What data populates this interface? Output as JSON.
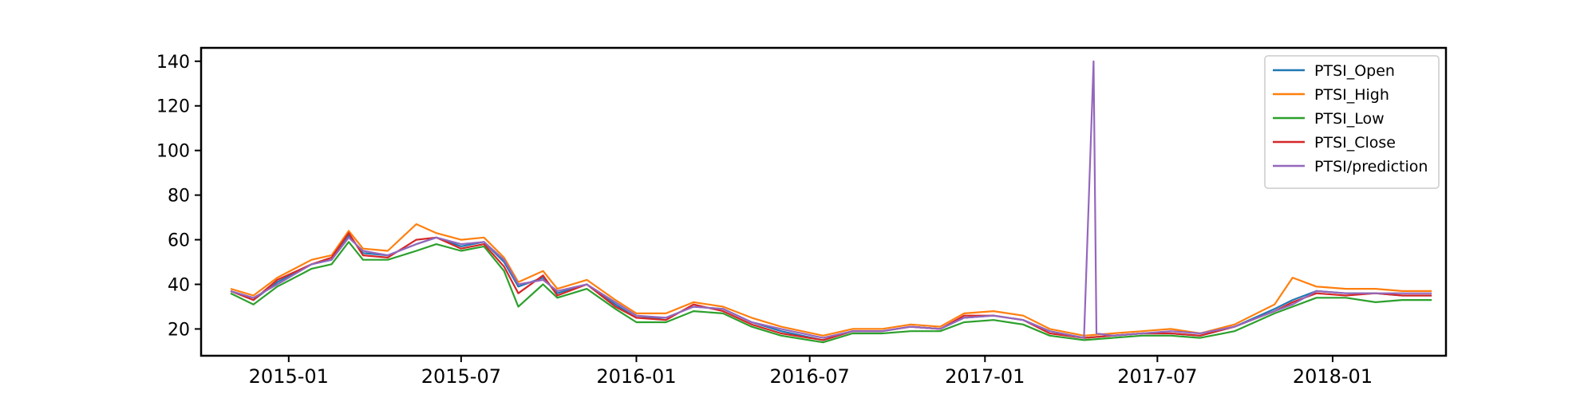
{
  "chart_data": {
    "type": "line",
    "title": "",
    "xlabel": "",
    "ylabel": "",
    "xlim": [
      "2014-10-01",
      "2018-04-30"
    ],
    "ylim": [
      8,
      146
    ],
    "grid": false,
    "legend_position": "top-right",
    "x_ticks": [
      "2015-01",
      "2015-07",
      "2016-01",
      "2016-07",
      "2017-01",
      "2017-07",
      "2018-01"
    ],
    "y_ticks": [
      20,
      40,
      60,
      80,
      100,
      120,
      140
    ],
    "series": [
      {
        "name": "PTSI_Open",
        "color": "#1f77b4",
        "points": [
          [
            "2014-11-01",
            37
          ],
          [
            "2014-11-25",
            33
          ],
          [
            "2014-12-20",
            41
          ],
          [
            "2015-01-25",
            49
          ],
          [
            "2015-02-15",
            51
          ],
          [
            "2015-03-05",
            62
          ],
          [
            "2015-03-20",
            54
          ],
          [
            "2015-04-15",
            53
          ],
          [
            "2015-05-15",
            58
          ],
          [
            "2015-06-05",
            61
          ],
          [
            "2015-07-01",
            57
          ],
          [
            "2015-07-25",
            59
          ],
          [
            "2015-08-15",
            50
          ],
          [
            "2015-08-30",
            39
          ],
          [
            "2015-09-25",
            43
          ],
          [
            "2015-10-10",
            36
          ],
          [
            "2015-11-10",
            40
          ],
          [
            "2015-12-10",
            31
          ],
          [
            "2016-01-01",
            25
          ],
          [
            "2016-02-01",
            25
          ],
          [
            "2016-03-01",
            30
          ],
          [
            "2016-04-01",
            29
          ],
          [
            "2016-05-01",
            23
          ],
          [
            "2016-06-01",
            19
          ],
          [
            "2016-07-15",
            15
          ],
          [
            "2016-08-15",
            19
          ],
          [
            "2016-09-15",
            19
          ],
          [
            "2016-10-15",
            21
          ],
          [
            "2016-11-15",
            20
          ],
          [
            "2016-12-10",
            25
          ],
          [
            "2017-01-10",
            26
          ],
          [
            "2017-02-10",
            24
          ],
          [
            "2017-03-10",
            19
          ],
          [
            "2017-04-15",
            16
          ],
          [
            "2017-05-15",
            17
          ],
          [
            "2017-06-15",
            18
          ],
          [
            "2017-07-15",
            18
          ],
          [
            "2017-08-15",
            17
          ],
          [
            "2017-09-20",
            21
          ],
          [
            "2017-11-01",
            29
          ],
          [
            "2017-11-20",
            33
          ],
          [
            "2017-12-15",
            37
          ],
          [
            "2018-01-15",
            36
          ],
          [
            "2018-02-15",
            36
          ],
          [
            "2018-03-15",
            35
          ],
          [
            "2018-04-15",
            35
          ]
        ]
      },
      {
        "name": "PTSI_High",
        "color": "#ff7f0e",
        "points": [
          [
            "2014-11-01",
            38
          ],
          [
            "2014-11-25",
            35
          ],
          [
            "2014-12-20",
            43
          ],
          [
            "2015-01-25",
            51
          ],
          [
            "2015-02-15",
            53
          ],
          [
            "2015-03-05",
            64
          ],
          [
            "2015-03-20",
            56
          ],
          [
            "2015-04-15",
            55
          ],
          [
            "2015-05-15",
            67
          ],
          [
            "2015-06-05",
            63
          ],
          [
            "2015-07-01",
            60
          ],
          [
            "2015-07-25",
            61
          ],
          [
            "2015-08-15",
            52
          ],
          [
            "2015-08-30",
            41
          ],
          [
            "2015-09-25",
            46
          ],
          [
            "2015-10-10",
            38
          ],
          [
            "2015-11-10",
            42
          ],
          [
            "2015-12-10",
            33
          ],
          [
            "2016-01-01",
            27
          ],
          [
            "2016-02-01",
            27
          ],
          [
            "2016-03-01",
            32
          ],
          [
            "2016-04-01",
            30
          ],
          [
            "2016-05-01",
            25
          ],
          [
            "2016-06-01",
            21
          ],
          [
            "2016-07-15",
            17
          ],
          [
            "2016-08-15",
            20
          ],
          [
            "2016-09-15",
            20
          ],
          [
            "2016-10-15",
            22
          ],
          [
            "2016-11-15",
            21
          ],
          [
            "2016-12-10",
            27
          ],
          [
            "2017-01-10",
            28
          ],
          [
            "2017-02-10",
            26
          ],
          [
            "2017-03-10",
            20
          ],
          [
            "2017-04-15",
            17
          ],
          [
            "2017-05-15",
            18
          ],
          [
            "2017-06-15",
            19
          ],
          [
            "2017-07-15",
            20
          ],
          [
            "2017-08-15",
            18
          ],
          [
            "2017-09-20",
            22
          ],
          [
            "2017-11-01",
            31
          ],
          [
            "2017-11-20",
            43
          ],
          [
            "2017-12-15",
            39
          ],
          [
            "2018-01-15",
            38
          ],
          [
            "2018-02-15",
            38
          ],
          [
            "2018-03-15",
            37
          ],
          [
            "2018-04-15",
            37
          ]
        ]
      },
      {
        "name": "PTSI_Low",
        "color": "#2ca02c",
        "points": [
          [
            "2014-11-01",
            36
          ],
          [
            "2014-11-25",
            31
          ],
          [
            "2014-12-20",
            39
          ],
          [
            "2015-01-25",
            47
          ],
          [
            "2015-02-15",
            49
          ],
          [
            "2015-03-05",
            59
          ],
          [
            "2015-03-20",
            51
          ],
          [
            "2015-04-15",
            51
          ],
          [
            "2015-05-15",
            55
          ],
          [
            "2015-06-05",
            58
          ],
          [
            "2015-07-01",
            55
          ],
          [
            "2015-07-25",
            57
          ],
          [
            "2015-08-15",
            46
          ],
          [
            "2015-08-30",
            30
          ],
          [
            "2015-09-25",
            40
          ],
          [
            "2015-10-10",
            34
          ],
          [
            "2015-11-10",
            38
          ],
          [
            "2015-12-10",
            29
          ],
          [
            "2016-01-01",
            23
          ],
          [
            "2016-02-01",
            23
          ],
          [
            "2016-03-01",
            28
          ],
          [
            "2016-04-01",
            27
          ],
          [
            "2016-05-01",
            21
          ],
          [
            "2016-06-01",
            17
          ],
          [
            "2016-07-15",
            14
          ],
          [
            "2016-08-15",
            18
          ],
          [
            "2016-09-15",
            18
          ],
          [
            "2016-10-15",
            19
          ],
          [
            "2016-11-15",
            19
          ],
          [
            "2016-12-10",
            23
          ],
          [
            "2017-01-10",
            24
          ],
          [
            "2017-02-10",
            22
          ],
          [
            "2017-03-10",
            17
          ],
          [
            "2017-04-15",
            15
          ],
          [
            "2017-05-15",
            16
          ],
          [
            "2017-06-15",
            17
          ],
          [
            "2017-07-15",
            17
          ],
          [
            "2017-08-15",
            16
          ],
          [
            "2017-09-20",
            19
          ],
          [
            "2017-11-01",
            27
          ],
          [
            "2017-11-20",
            30
          ],
          [
            "2017-12-15",
            34
          ],
          [
            "2018-01-15",
            34
          ],
          [
            "2018-02-15",
            32
          ],
          [
            "2018-03-15",
            33
          ],
          [
            "2018-04-15",
            33
          ]
        ]
      },
      {
        "name": "PTSI_Close",
        "color": "#d62728",
        "points": [
          [
            "2014-11-01",
            37
          ],
          [
            "2014-11-25",
            33
          ],
          [
            "2014-12-20",
            42
          ],
          [
            "2015-01-25",
            49
          ],
          [
            "2015-02-15",
            52
          ],
          [
            "2015-03-05",
            63
          ],
          [
            "2015-03-20",
            53
          ],
          [
            "2015-04-15",
            52
          ],
          [
            "2015-05-15",
            60
          ],
          [
            "2015-06-05",
            61
          ],
          [
            "2015-07-01",
            56
          ],
          [
            "2015-07-25",
            58
          ],
          [
            "2015-08-15",
            48
          ],
          [
            "2015-08-30",
            36
          ],
          [
            "2015-09-25",
            44
          ],
          [
            "2015-10-10",
            35
          ],
          [
            "2015-11-10",
            40
          ],
          [
            "2015-12-10",
            30
          ],
          [
            "2016-01-01",
            25
          ],
          [
            "2016-02-01",
            24
          ],
          [
            "2016-03-01",
            31
          ],
          [
            "2016-04-01",
            28
          ],
          [
            "2016-05-01",
            22
          ],
          [
            "2016-06-01",
            18
          ],
          [
            "2016-07-15",
            15
          ],
          [
            "2016-08-15",
            19
          ],
          [
            "2016-09-15",
            19
          ],
          [
            "2016-10-15",
            21
          ],
          [
            "2016-11-15",
            20
          ],
          [
            "2016-12-10",
            26
          ],
          [
            "2017-01-10",
            26
          ],
          [
            "2017-02-10",
            24
          ],
          [
            "2017-03-10",
            18
          ],
          [
            "2017-04-15",
            16
          ],
          [
            "2017-05-15",
            17
          ],
          [
            "2017-06-15",
            18
          ],
          [
            "2017-07-15",
            18
          ],
          [
            "2017-08-15",
            17
          ],
          [
            "2017-09-20",
            21
          ],
          [
            "2017-11-01",
            28
          ],
          [
            "2017-11-20",
            32
          ],
          [
            "2017-12-15",
            36
          ],
          [
            "2018-01-15",
            35
          ],
          [
            "2018-02-15",
            36
          ],
          [
            "2018-03-15",
            35
          ],
          [
            "2018-04-15",
            35
          ]
        ]
      },
      {
        "name": "PTSI/prediction",
        "color": "#9467bd",
        "points": [
          [
            "2014-11-01",
            37
          ],
          [
            "2014-11-25",
            34
          ],
          [
            "2014-12-20",
            40
          ],
          [
            "2015-01-25",
            49
          ],
          [
            "2015-02-15",
            51
          ],
          [
            "2015-03-05",
            61
          ],
          [
            "2015-03-20",
            55
          ],
          [
            "2015-04-15",
            53
          ],
          [
            "2015-05-15",
            58
          ],
          [
            "2015-06-05",
            61
          ],
          [
            "2015-07-01",
            58
          ],
          [
            "2015-07-25",
            59
          ],
          [
            "2015-08-15",
            51
          ],
          [
            "2015-08-30",
            40
          ],
          [
            "2015-09-25",
            42
          ],
          [
            "2015-10-10",
            37
          ],
          [
            "2015-11-10",
            40
          ],
          [
            "2015-12-10",
            32
          ],
          [
            "2016-01-01",
            26
          ],
          [
            "2016-02-01",
            25
          ],
          [
            "2016-03-01",
            30
          ],
          [
            "2016-04-01",
            29
          ],
          [
            "2016-05-01",
            23
          ],
          [
            "2016-06-01",
            20
          ],
          [
            "2016-07-15",
            16
          ],
          [
            "2016-08-15",
            19
          ],
          [
            "2016-09-15",
            19
          ],
          [
            "2016-10-15",
            21
          ],
          [
            "2016-11-15",
            20
          ],
          [
            "2016-12-10",
            25
          ],
          [
            "2017-01-10",
            26
          ],
          [
            "2017-02-10",
            24
          ],
          [
            "2017-03-10",
            19
          ],
          [
            "2017-04-15",
            16
          ],
          [
            "2017-04-25",
            140
          ],
          [
            "2017-04-28",
            18
          ],
          [
            "2017-05-15",
            17
          ],
          [
            "2017-06-15",
            18
          ],
          [
            "2017-07-15",
            19
          ],
          [
            "2017-08-15",
            18
          ],
          [
            "2017-09-20",
            21
          ],
          [
            "2017-11-01",
            28
          ],
          [
            "2017-11-20",
            31
          ],
          [
            "2017-12-15",
            37
          ],
          [
            "2018-01-15",
            36
          ],
          [
            "2018-02-15",
            36
          ],
          [
            "2018-03-15",
            36
          ],
          [
            "2018-04-15",
            36
          ]
        ]
      }
    ]
  }
}
